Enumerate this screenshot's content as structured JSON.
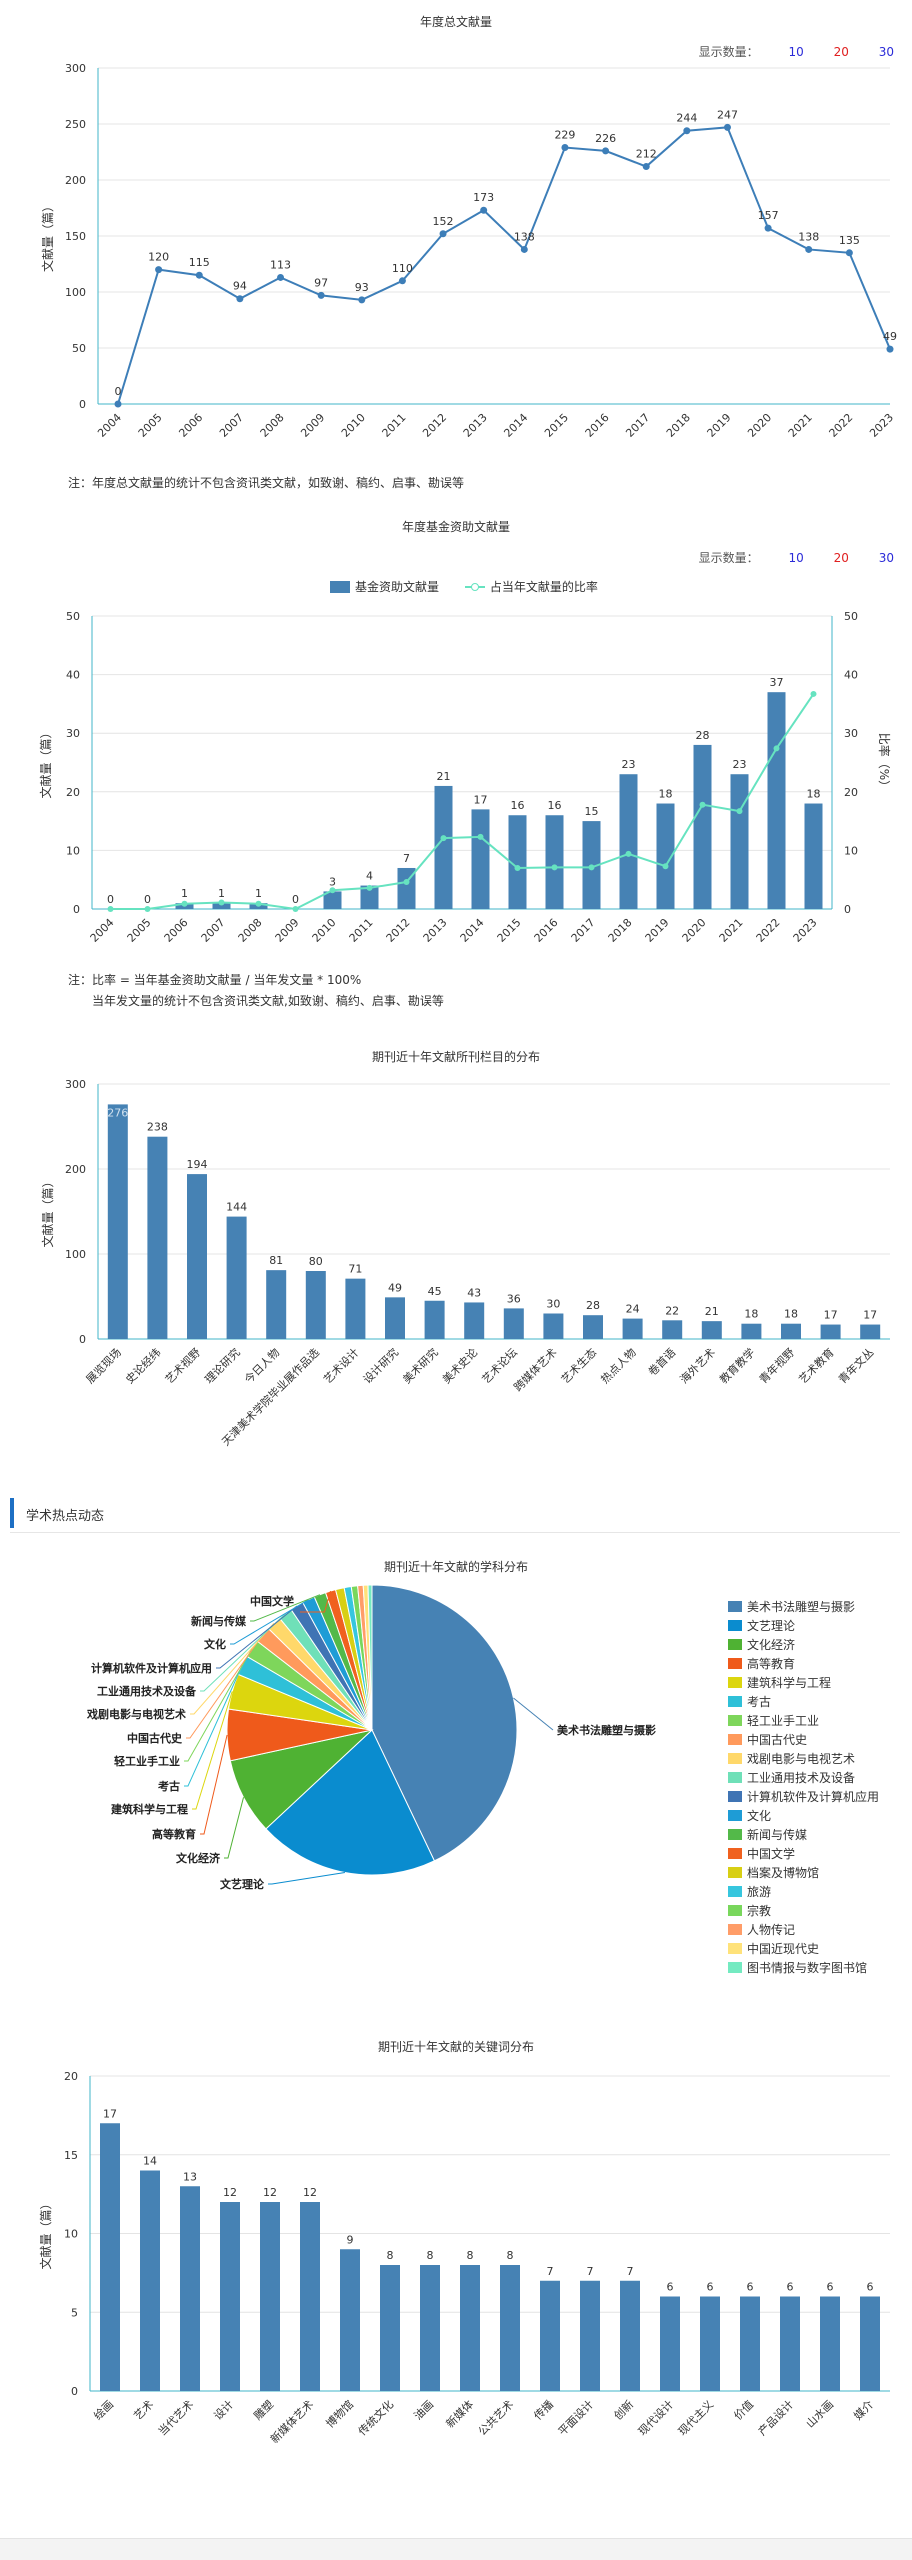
{
  "count_options": {
    "label": "显示数量：",
    "opts": [
      "10",
      "20",
      "30"
    ]
  },
  "chart1": {
    "title": "年度总文献量",
    "ylabel": "文献量（篇）",
    "note": "注：年度总文献量的统计不包含资讯类文献，如致谢、稿约、启事、勘误等"
  },
  "chart2": {
    "title": "年度基金资助文献量",
    "ylabel": "文献量（篇）",
    "y2label": "比率（%）",
    "legend": {
      "bar": "基金资助文献量",
      "line": "占当年文献量的比率"
    },
    "note1": "注：比率 = 当年基金资助文献量 / 当年发文量 * 100%",
    "note2": "当年发文量的统计不包含资讯类文献,如致谢、稿约、启事、勘误等"
  },
  "chart3": {
    "title": "期刊近十年文献所刊栏目的分布",
    "ylabel": "文献量（篇）"
  },
  "section": {
    "title": "学术热点动态"
  },
  "chart4": {
    "title": "期刊近十年文献的学科分布"
  },
  "chart5": {
    "title": "期刊近十年文献的关键词分布",
    "ylabel": "文献量（篇）"
  },
  "chart_data": [
    {
      "type": "line",
      "title": "年度总文献量",
      "ylabel": "文献量（篇）",
      "ylim": [
        0,
        300
      ],
      "yticks": [
        0,
        50,
        100,
        150,
        200,
        250,
        300
      ],
      "grid": true,
      "color": "#3d7eb8",
      "x": [
        "2004",
        "2005",
        "2006",
        "2007",
        "2008",
        "2009",
        "2010",
        "2011",
        "2012",
        "2013",
        "2014",
        "2015",
        "2016",
        "2017",
        "2018",
        "2019",
        "2020",
        "2021",
        "2022",
        "2023"
      ],
      "values": [
        0,
        120,
        115,
        94,
        113,
        97,
        93,
        110,
        152,
        173,
        138,
        229,
        226,
        212,
        244,
        247,
        157,
        138,
        135,
        49
      ]
    },
    {
      "type": "bar",
      "title": "年度基金资助文献量",
      "ylabel": "文献量（篇）",
      "y2label": "比率（%）",
      "ylim": [
        0,
        50
      ],
      "y2lim": [
        0,
        50
      ],
      "yticks": [
        0,
        10,
        20,
        30,
        40,
        50
      ],
      "legend_position": "top-center",
      "categories": [
        "2004",
        "2005",
        "2006",
        "2007",
        "2008",
        "2009",
        "2010",
        "2011",
        "2012",
        "2013",
        "2014",
        "2015",
        "2016",
        "2017",
        "2018",
        "2019",
        "2020",
        "2021",
        "2022",
        "2023"
      ],
      "series": [
        {
          "name": "基金资助文献量",
          "type": "bar",
          "color": "#4682b4",
          "values": [
            0,
            0,
            1,
            1,
            1,
            0,
            3,
            4,
            7,
            21,
            17,
            16,
            16,
            15,
            23,
            18,
            28,
            23,
            37,
            18
          ]
        },
        {
          "name": "占当年文献量的比率",
          "type": "line",
          "color": "#66e3c0",
          "values": [
            0,
            0,
            0.9,
            1.1,
            0.9,
            0,
            3.2,
            3.6,
            4.6,
            12.1,
            12.3,
            7.0,
            7.1,
            7.1,
            9.4,
            7.3,
            17.8,
            16.7,
            27.4,
            36.7
          ]
        }
      ]
    },
    {
      "type": "bar",
      "title": "期刊近十年文献所刊栏目的分布",
      "ylabel": "文献量（篇）",
      "ylim": [
        0,
        300
      ],
      "yticks": [
        0,
        100,
        200,
        300
      ],
      "color": "#4682b4",
      "categories": [
        "展览现场",
        "史论经纬",
        "艺术视野",
        "理论研究",
        "今日人物",
        "天津美术学院毕业展作品选",
        "艺术设计",
        "设计研究",
        "美术研究",
        "美术史论",
        "艺术论坛",
        "跨媒体艺术",
        "艺术生态",
        "热点人物",
        "卷首语",
        "海外艺术",
        "教育教学",
        "青年视野",
        "艺术教育",
        "青年文丛"
      ],
      "values": [
        276,
        238,
        194,
        144,
        81,
        80,
        71,
        49,
        45,
        43,
        36,
        30,
        28,
        24,
        22,
        21,
        18,
        18,
        17,
        17
      ],
      "labels": [
        "276",
        "238",
        "194",
        "144",
        "81",
        "80",
        "71",
        "49",
        "45",
        "43",
        "36",
        "30",
        "28",
        "24",
        "22",
        "21",
        "18",
        "18",
        "17",
        "17"
      ]
    },
    {
      "type": "pie",
      "title": "期刊近十年文献的学科分布",
      "categories": [
        "美术书法雕塑与摄影",
        "文艺理论",
        "文化经济",
        "高等教育",
        "建筑科学与工程",
        "考古",
        "轻工业手工业",
        "中国古代史",
        "戏剧电影与电视艺术",
        "工业通用技术及设备",
        "计算机软件及计算机应用",
        "文化",
        "新闻与传媒",
        "中国文学",
        "档案及博物馆",
        "旅游",
        "宗教",
        "人物传记",
        "中国近现代史",
        "图书情报与数字图书馆"
      ],
      "values": [
        488,
        229,
        97,
        65,
        45,
        25,
        23,
        21,
        19,
        18,
        17,
        16,
        15,
        13,
        11,
        9,
        8,
        7,
        6,
        5
      ],
      "colors": [
        "#4682b4",
        "#0a8ccf",
        "#4fb233",
        "#ef5a1b",
        "#dcd60e",
        "#2ec0d8",
        "#7ed65b",
        "#ff9a5c",
        "#ffd86a",
        "#6fe0b8",
        "#3f74b4",
        "#1e9cd6",
        "#53b949",
        "#f0611f",
        "#d8cf14",
        "#36c6de",
        "#79d75c",
        "#ff9d68",
        "#ffe27a",
        "#74eac1"
      ]
    },
    {
      "type": "bar",
      "title": "期刊近十年文献的关键词分布",
      "ylabel": "文献量（篇）",
      "ylim": [
        0,
        20
      ],
      "yticks": [
        0,
        5,
        10,
        15,
        20
      ],
      "color": "#4682b4",
      "categories": [
        "绘画",
        "艺术",
        "当代艺术",
        "设计",
        "雕塑",
        "新媒体艺术",
        "博物馆",
        "传统文化",
        "油画",
        "新媒体",
        "公共艺术",
        "传播",
        "平面设计",
        "创新",
        "现代设计",
        "现代主义",
        "价值",
        "产品设计",
        "山水画",
        "媒介"
      ],
      "values": [
        17,
        14,
        13,
        12,
        12,
        12,
        9,
        8,
        8,
        8,
        8,
        7,
        7,
        7,
        6,
        6,
        6,
        6,
        6,
        6
      ]
    }
  ]
}
